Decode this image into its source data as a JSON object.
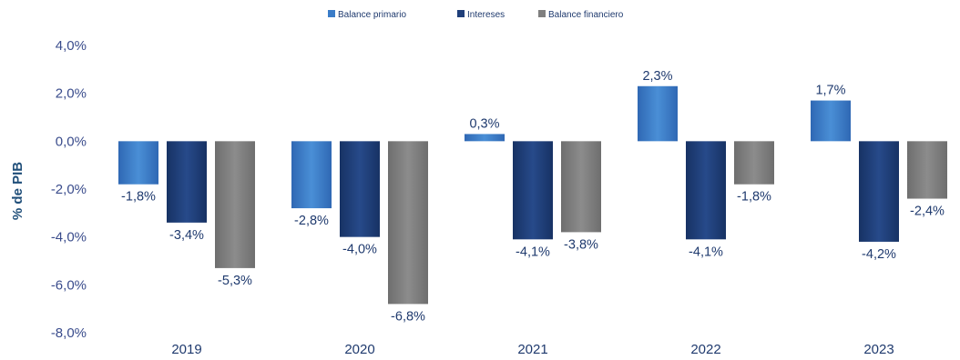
{
  "chart_data": {
    "type": "bar",
    "categories": [
      "2019",
      "2020",
      "2021",
      "2022",
      "2023"
    ],
    "series": [
      {
        "name": "Balance primario",
        "values": [
          -1.8,
          -2.8,
          0.3,
          2.3,
          1.7
        ],
        "labels": [
          "-1,8%",
          "-2,8%",
          "0,3%",
          "2,3%",
          "1,7%"
        ],
        "color": "#3a7cc8"
      },
      {
        "name": "Intereses",
        "values": [
          -3.4,
          -4.0,
          -4.1,
          -4.1,
          -4.2
        ],
        "labels": [
          "-3,4%",
          "-4,0%",
          "-4,1%",
          "-4,1%",
          "-4,2%"
        ],
        "color": "#1f3f7a"
      },
      {
        "name": "Balance financiero",
        "values": [
          -5.3,
          -6.8,
          -3.8,
          -1.8,
          -2.4
        ],
        "labels": [
          "-5,3%",
          "-6,8%",
          "-3,8%",
          "-1,8%",
          "-2,4%"
        ],
        "color": "#7f7f7f"
      }
    ],
    "ylabel": "% de PIB",
    "ylim": [
      -8,
      4
    ],
    "yticks": [
      4,
      2,
      0,
      -2,
      -4,
      -6,
      -8
    ],
    "ytick_labels": [
      "4,0%",
      "2,0%",
      "0,0%",
      "-2,0%",
      "-4,0%",
      "-6,0%",
      "-8,0%"
    ],
    "grid": false,
    "legend_position": "top-center"
  }
}
